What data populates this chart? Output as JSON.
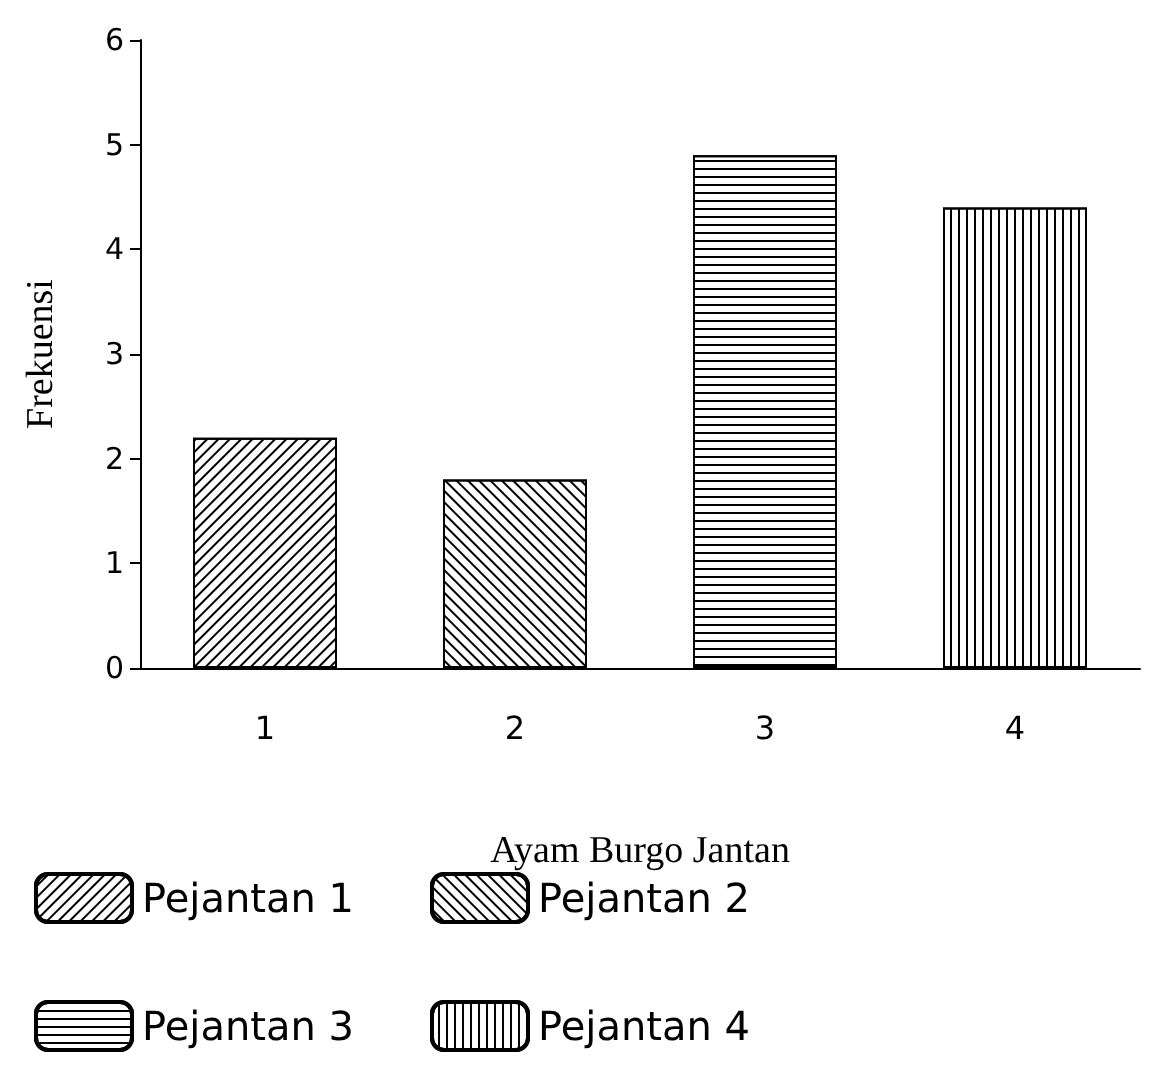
{
  "chart_data": {
    "type": "bar",
    "xlabel": "Ayam Burgo Jantan",
    "ylabel": "Frekuensi",
    "categories": [
      "1",
      "2",
      "3",
      "4"
    ],
    "series": [
      {
        "name": "Pejantan 1",
        "color": "#000000",
        "values": [
          2.2,
          null,
          null,
          null
        ]
      },
      {
        "name": "Pejantan 2",
        "color": "#000000",
        "values": [
          null,
          1.8,
          null,
          null
        ]
      },
      {
        "name": "Pejantan 3",
        "color": "#000000",
        "values": [
          null,
          null,
          4.9,
          null
        ]
      },
      {
        "name": "Pejantan 4",
        "color": "#000000",
        "values": [
          null,
          null,
          null,
          4.4
        ]
      }
    ],
    "ylim": [
      0,
      6
    ],
    "yticks": [
      0,
      1,
      2,
      3,
      4,
      5,
      6
    ],
    "grid": false,
    "legend": "bottom"
  }
}
